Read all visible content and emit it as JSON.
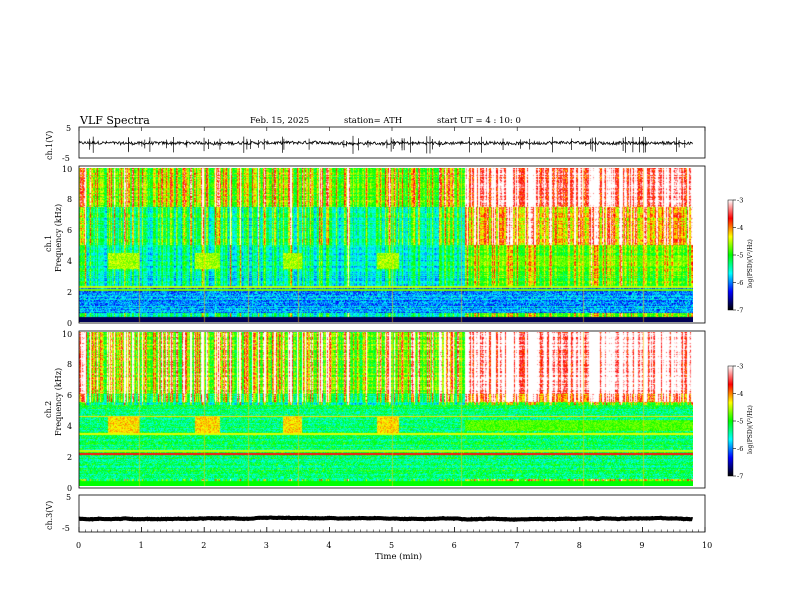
{
  "header": {
    "title": "VLF  Spectra",
    "date": "Feb. 15, 2025",
    "station": "station= ATH",
    "start_ut": "start  UT  =   4  : 10: 0"
  },
  "colorbar": {
    "label": "log(PSD)(V²/Hz)",
    "ticks": [
      "-3",
      "-4",
      "-5",
      "-6",
      "-7"
    ],
    "colors": [
      "#ffffff",
      "#ff0000",
      "#ffff00",
      "#00ff00",
      "#00ffff",
      "#0000ff",
      "#000000"
    ]
  },
  "chart_data": [
    {
      "type": "line",
      "ylabel": "ch.1(V)",
      "ylim": [
        -5,
        5
      ],
      "yticks": [
        "5",
        "-5"
      ],
      "xlim": [
        0,
        10
      ],
      "description_values": {
        "baseline": -0.2,
        "noise_amplitude": 1.0
      }
    },
    {
      "type": "heatmap",
      "ylabel": "Frequency  (kHz)",
      "channel_label": "ch.1",
      "yticks": [
        "10",
        "8",
        "6",
        "4",
        "2",
        "0"
      ],
      "ylim": [
        0,
        10
      ],
      "xlim": [
        0,
        10
      ]
    },
    {
      "type": "heatmap",
      "ylabel": "Frequency  (kHz)",
      "channel_label": "ch.2",
      "yticks": [
        "10",
        "8",
        "6",
        "4",
        "2",
        "0"
      ],
      "ylim": [
        0,
        10
      ],
      "xlim": [
        0,
        10
      ]
    },
    {
      "type": "line",
      "ylabel": "ch.3(V)",
      "ylim": [
        -5,
        5
      ],
      "yticks": [
        "5",
        "-5"
      ],
      "xlim": [
        0,
        10
      ],
      "description_values": {
        "baseline": -1.4,
        "noise_amplitude": 0.1
      }
    }
  ],
  "xaxis": {
    "label": "Time  (min)",
    "ticks": [
      "0",
      "1",
      "2",
      "3",
      "4",
      "5",
      "6",
      "7",
      "8",
      "9",
      "10"
    ]
  }
}
